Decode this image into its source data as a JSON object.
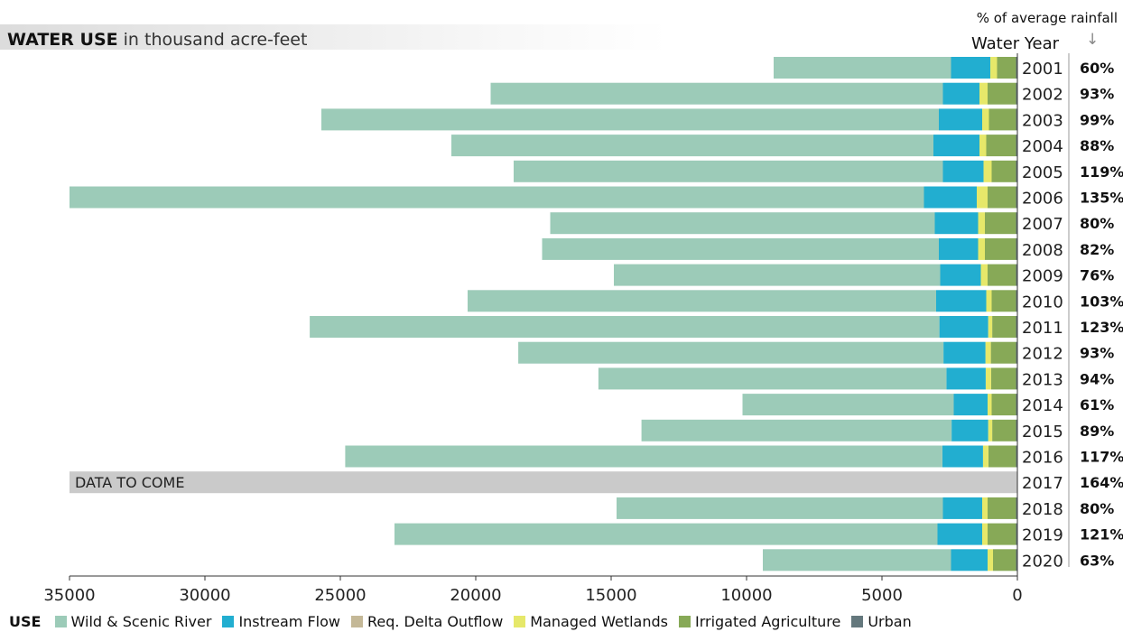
{
  "header": {
    "title_main": "WATER USE",
    "title_sub": "in thousand acre-feet",
    "pct_header": "% of average rainfall",
    "year_header": "Water Year",
    "arrow": "↓"
  },
  "pending_label": "DATA TO COME",
  "legend": {
    "title": "USE",
    "items": [
      {
        "label": "Wild & Scenic River",
        "color": "#9ccbb8"
      },
      {
        "label": "Instream Flow",
        "color": "#22aed0"
      },
      {
        "label": "Req. Delta Outflow",
        "color": "#c4b897"
      },
      {
        "label": "Managed Wetlands",
        "color": "#e6e86a"
      },
      {
        "label": "Irrigated Agriculture",
        "color": "#87a957"
      },
      {
        "label": "Urban",
        "color": "#64787d"
      }
    ]
  },
  "chart_data": {
    "type": "bar",
    "orientation": "horizontal",
    "stacked": true,
    "title": "WATER USE in thousand acre-feet",
    "xlim": [
      35000,
      0
    ],
    "x_ticks": [
      "35000",
      "30000",
      "25000",
      "20000",
      "15000",
      "10000",
      "5000",
      "0"
    ],
    "x_tick_values": [
      35000,
      30000,
      25000,
      20000,
      15000,
      10000,
      5000,
      0
    ],
    "categories": [
      "2001",
      "2002",
      "2003",
      "2004",
      "2005",
      "2006",
      "2007",
      "2008",
      "2009",
      "2010",
      "2011",
      "2012",
      "2013",
      "2014",
      "2015",
      "2016",
      "2017",
      "2018",
      "2019",
      "2020"
    ],
    "pct_rainfall": [
      "60%",
      "93%",
      "99%",
      "88%",
      "119%",
      "135%",
      "80%",
      "82%",
      "76%",
      "103%",
      "123%",
      "93%",
      "94%",
      "61%",
      "89%",
      "117%",
      "164%",
      "80%",
      "121%",
      "63%"
    ],
    "pending": [
      "2017"
    ],
    "series": [
      {
        "name": "Urban",
        "color": "#64787d",
        "values": [
          50,
          50,
          50,
          50,
          50,
          50,
          50,
          50,
          50,
          50,
          50,
          50,
          50,
          50,
          50,
          50,
          null,
          50,
          50,
          50
        ]
      },
      {
        "name": "Irrigated Agriculture",
        "color": "#87a957",
        "values": [
          700,
          1050,
          1000,
          1100,
          900,
          1050,
          1150,
          1150,
          1050,
          900,
          880,
          930,
          920,
          900,
          880,
          1020,
          null,
          1050,
          1050,
          850
        ]
      },
      {
        "name": "Managed Wetlands",
        "color": "#e6e86a",
        "values": [
          250,
          300,
          250,
          250,
          300,
          400,
          250,
          250,
          250,
          200,
          150,
          200,
          200,
          150,
          150,
          200,
          null,
          200,
          200,
          200
        ]
      },
      {
        "name": "Req. Delta Outflow",
        "color": "#c4b897",
        "values": [
          0,
          0,
          0,
          0,
          0,
          0,
          0,
          0,
          0,
          0,
          0,
          0,
          0,
          0,
          0,
          0,
          null,
          0,
          0,
          0
        ]
      },
      {
        "name": "Instream Flow",
        "color": "#22aed0",
        "values": [
          1450,
          1350,
          1600,
          1700,
          1500,
          1950,
          1600,
          1450,
          1500,
          1850,
          1800,
          1550,
          1450,
          1250,
          1350,
          1500,
          null,
          1450,
          1650,
          1350
        ]
      },
      {
        "name": "Wild & Scenic River",
        "color": "#9ccbb8",
        "values": [
          6550,
          16700,
          22800,
          17800,
          15850,
          31550,
          14200,
          14650,
          12050,
          17300,
          23250,
          15700,
          12850,
          7800,
          11450,
          22050,
          null,
          12050,
          20050,
          6950
        ]
      }
    ]
  }
}
